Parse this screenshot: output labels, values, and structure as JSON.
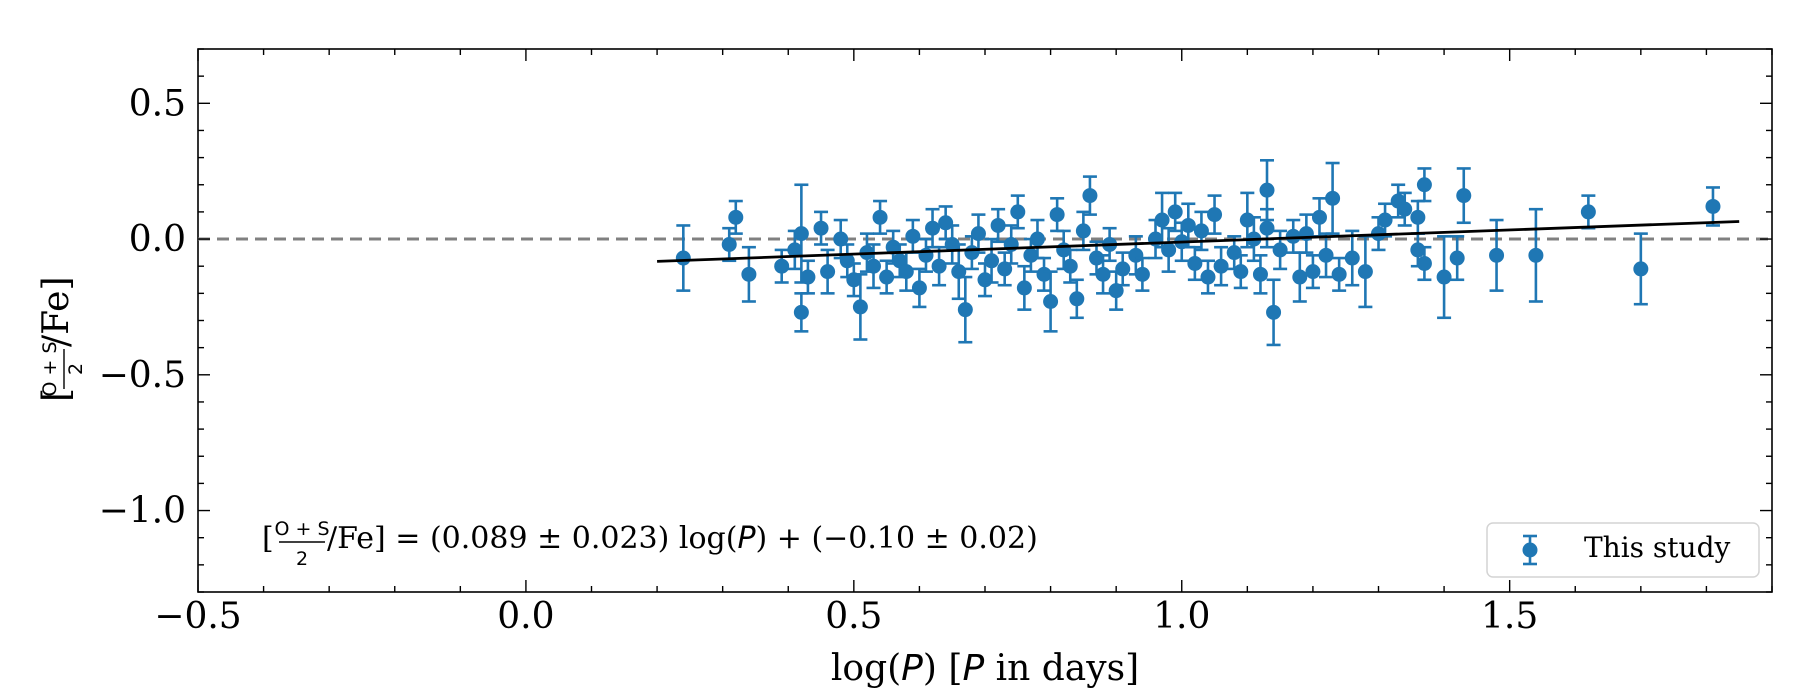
{
  "chart_data": {
    "type": "scatter",
    "xlabel": {
      "prefix": "log(",
      "var": "P",
      "mid": ") [",
      "var2": "P",
      "suffix": " in days]"
    },
    "ylabel": {
      "open": "[",
      "numerator": "O + S",
      "denominator": "2",
      "close": "/Fe]"
    },
    "xlim": [
      -0.5,
      1.9
    ],
    "ylim": [
      -1.3,
      0.7
    ],
    "x_ticks": [
      -0.5,
      0.0,
      0.5,
      1.0,
      1.5
    ],
    "x_tick_labels": [
      "−0.5",
      "0.0",
      "0.5",
      "1.0",
      "1.5"
    ],
    "y_ticks": [
      0.5,
      0.0,
      -0.5,
      -1.0
    ],
    "y_tick_labels": [
      "0.5",
      "0.0",
      "−0.5",
      "−1.0"
    ],
    "reference_line": {
      "y": 0.0,
      "style": "dashed",
      "color": "#808080"
    },
    "fit": {
      "slope": 0.089,
      "intercept": -0.1,
      "x_range": [
        0.2,
        1.85
      ],
      "color": "#000000"
    },
    "fit_label": {
      "open": "[",
      "numerator": "O + S",
      "denominator": "2",
      "rest_1": "/Fe] = (0.089 ± 0.023) log(",
      "var": "P",
      "rest_2": ") + (−0.10 ± 0.02)"
    },
    "legend": {
      "label": "This study",
      "location": "lower-right"
    },
    "series_color": "#1f77b4",
    "series": [
      {
        "name": "This study",
        "points": [
          {
            "x": 0.24,
            "y": -0.07,
            "err": 0.12
          },
          {
            "x": 0.31,
            "y": -0.02,
            "err": 0.06
          },
          {
            "x": 0.32,
            "y": 0.08,
            "err": 0.06
          },
          {
            "x": 0.34,
            "y": -0.13,
            "err": 0.1
          },
          {
            "x": 0.39,
            "y": -0.1,
            "err": 0.06
          },
          {
            "x": 0.41,
            "y": -0.04,
            "err": 0.07
          },
          {
            "x": 0.42,
            "y": 0.02,
            "err": 0.18
          },
          {
            "x": 0.42,
            "y": -0.27,
            "err": 0.07
          },
          {
            "x": 0.43,
            "y": -0.14,
            "err": 0.06
          },
          {
            "x": 0.45,
            "y": 0.04,
            "err": 0.06
          },
          {
            "x": 0.46,
            "y": -0.12,
            "err": 0.08
          },
          {
            "x": 0.48,
            "y": 0.0,
            "err": 0.07
          },
          {
            "x": 0.49,
            "y": -0.08,
            "err": 0.06
          },
          {
            "x": 0.5,
            "y": -0.15,
            "err": 0.06
          },
          {
            "x": 0.51,
            "y": -0.25,
            "err": 0.12
          },
          {
            "x": 0.52,
            "y": -0.05,
            "err": 0.07
          },
          {
            "x": 0.53,
            "y": -0.1,
            "err": 0.08
          },
          {
            "x": 0.54,
            "y": 0.08,
            "err": 0.06
          },
          {
            "x": 0.55,
            "y": -0.14,
            "err": 0.06
          },
          {
            "x": 0.56,
            "y": -0.03,
            "err": 0.06
          },
          {
            "x": 0.57,
            "y": -0.08,
            "err": 0.06
          },
          {
            "x": 0.58,
            "y": -0.12,
            "err": 0.07
          },
          {
            "x": 0.59,
            "y": 0.01,
            "err": 0.06
          },
          {
            "x": 0.6,
            "y": -0.18,
            "err": 0.07
          },
          {
            "x": 0.61,
            "y": -0.06,
            "err": 0.06
          },
          {
            "x": 0.62,
            "y": 0.04,
            "err": 0.07
          },
          {
            "x": 0.63,
            "y": -0.1,
            "err": 0.07
          },
          {
            "x": 0.64,
            "y": 0.06,
            "err": 0.06
          },
          {
            "x": 0.65,
            "y": -0.02,
            "err": 0.07
          },
          {
            "x": 0.66,
            "y": -0.12,
            "err": 0.1
          },
          {
            "x": 0.67,
            "y": -0.26,
            "err": 0.12
          },
          {
            "x": 0.68,
            "y": -0.05,
            "err": 0.06
          },
          {
            "x": 0.69,
            "y": 0.02,
            "err": 0.07
          },
          {
            "x": 0.7,
            "y": -0.15,
            "err": 0.06
          },
          {
            "x": 0.71,
            "y": -0.08,
            "err": 0.08
          },
          {
            "x": 0.72,
            "y": 0.05,
            "err": 0.06
          },
          {
            "x": 0.73,
            "y": -0.11,
            "err": 0.06
          },
          {
            "x": 0.74,
            "y": -0.02,
            "err": 0.07
          },
          {
            "x": 0.75,
            "y": 0.1,
            "err": 0.06
          },
          {
            "x": 0.76,
            "y": -0.18,
            "err": 0.08
          },
          {
            "x": 0.77,
            "y": -0.06,
            "err": 0.06
          },
          {
            "x": 0.78,
            "y": 0.0,
            "err": 0.07
          },
          {
            "x": 0.79,
            "y": -0.13,
            "err": 0.06
          },
          {
            "x": 0.8,
            "y": -0.23,
            "err": 0.11
          },
          {
            "x": 0.81,
            "y": 0.09,
            "err": 0.06
          },
          {
            "x": 0.82,
            "y": -0.04,
            "err": 0.07
          },
          {
            "x": 0.83,
            "y": -0.1,
            "err": 0.06
          },
          {
            "x": 0.84,
            "y": -0.22,
            "err": 0.07
          },
          {
            "x": 0.85,
            "y": 0.03,
            "err": 0.07
          },
          {
            "x": 0.86,
            "y": 0.16,
            "err": 0.07
          },
          {
            "x": 0.87,
            "y": -0.07,
            "err": 0.06
          },
          {
            "x": 0.88,
            "y": -0.13,
            "err": 0.07
          },
          {
            "x": 0.89,
            "y": -0.02,
            "err": 0.06
          },
          {
            "x": 0.9,
            "y": -0.19,
            "err": 0.07
          },
          {
            "x": 0.91,
            "y": -0.11,
            "err": 0.06
          },
          {
            "x": 0.93,
            "y": -0.06,
            "err": 0.07
          },
          {
            "x": 0.94,
            "y": -0.13,
            "err": 0.06
          },
          {
            "x": 0.96,
            "y": 0.0,
            "err": 0.07
          },
          {
            "x": 0.97,
            "y": 0.07,
            "err": 0.1
          },
          {
            "x": 0.98,
            "y": -0.04,
            "err": 0.08
          },
          {
            "x": 0.99,
            "y": 0.1,
            "err": 0.07
          },
          {
            "x": 1.0,
            "y": -0.01,
            "err": 0.07
          },
          {
            "x": 1.01,
            "y": 0.05,
            "err": 0.08
          },
          {
            "x": 1.02,
            "y": -0.09,
            "err": 0.06
          },
          {
            "x": 1.03,
            "y": 0.03,
            "err": 0.07
          },
          {
            "x": 1.04,
            "y": -0.14,
            "err": 0.06
          },
          {
            "x": 1.05,
            "y": 0.09,
            "err": 0.07
          },
          {
            "x": 1.06,
            "y": -0.1,
            "err": 0.07
          },
          {
            "x": 1.08,
            "y": -0.05,
            "err": 0.06
          },
          {
            "x": 1.09,
            "y": -0.12,
            "err": 0.06
          },
          {
            "x": 1.1,
            "y": 0.07,
            "err": 0.1
          },
          {
            "x": 1.11,
            "y": 0.0,
            "err": 0.08
          },
          {
            "x": 1.12,
            "y": -0.13,
            "err": 0.07
          },
          {
            "x": 1.13,
            "y": 0.04,
            "err": 0.07
          },
          {
            "x": 1.13,
            "y": 0.18,
            "err": 0.11
          },
          {
            "x": 1.14,
            "y": -0.27,
            "err": 0.12
          },
          {
            "x": 1.15,
            "y": -0.04,
            "err": 0.07
          },
          {
            "x": 1.17,
            "y": 0.01,
            "err": 0.06
          },
          {
            "x": 1.18,
            "y": -0.14,
            "err": 0.09
          },
          {
            "x": 1.19,
            "y": 0.02,
            "err": 0.07
          },
          {
            "x": 1.2,
            "y": -0.12,
            "err": 0.06
          },
          {
            "x": 1.21,
            "y": 0.08,
            "err": 0.07
          },
          {
            "x": 1.22,
            "y": -0.06,
            "err": 0.08
          },
          {
            "x": 1.23,
            "y": 0.15,
            "err": 0.13
          },
          {
            "x": 1.24,
            "y": -0.13,
            "err": 0.06
          },
          {
            "x": 1.26,
            "y": -0.07,
            "err": 0.1
          },
          {
            "x": 1.28,
            "y": -0.12,
            "err": 0.13
          },
          {
            "x": 1.3,
            "y": 0.02,
            "err": 0.06
          },
          {
            "x": 1.31,
            "y": 0.07,
            "err": 0.06
          },
          {
            "x": 1.33,
            "y": 0.14,
            "err": 0.06
          },
          {
            "x": 1.34,
            "y": 0.11,
            "err": 0.06
          },
          {
            "x": 1.36,
            "y": 0.08,
            "err": 0.06
          },
          {
            "x": 1.36,
            "y": -0.04,
            "err": 0.06
          },
          {
            "x": 1.37,
            "y": 0.2,
            "err": 0.06
          },
          {
            "x": 1.37,
            "y": -0.09,
            "err": 0.06
          },
          {
            "x": 1.4,
            "y": -0.14,
            "err": 0.15
          },
          {
            "x": 1.42,
            "y": -0.07,
            "err": 0.08
          },
          {
            "x": 1.43,
            "y": 0.16,
            "err": 0.1
          },
          {
            "x": 1.48,
            "y": -0.06,
            "err": 0.13
          },
          {
            "x": 1.54,
            "y": -0.06,
            "err": 0.17
          },
          {
            "x": 1.62,
            "y": 0.1,
            "err": 0.06
          },
          {
            "x": 1.7,
            "y": -0.11,
            "err": 0.13
          },
          {
            "x": 1.81,
            "y": 0.12,
            "err": 0.07
          }
        ]
      }
    ]
  }
}
